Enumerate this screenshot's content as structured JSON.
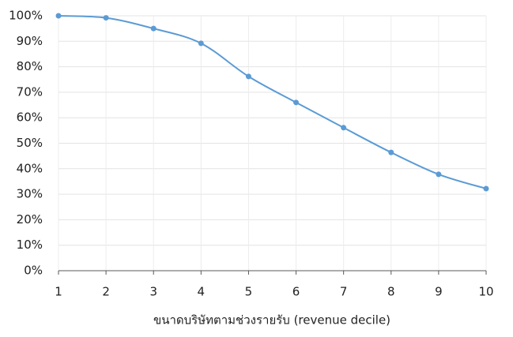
{
  "chart_data": {
    "type": "line",
    "x_label": "ขนาดบริษัทตามช่วงรายรับ (revenue decile)",
    "x": [
      1,
      2,
      3,
      4,
      5,
      6,
      7,
      8,
      9,
      10
    ],
    "series": [
      {
        "color": "#5b9bd5",
        "values": [
          100,
          99.2,
          95,
          89.2,
          76.2,
          66,
          56.1,
          46.4,
          37.8,
          32.2
        ]
      }
    ],
    "xlim": [
      1,
      10
    ],
    "xticks": [
      1,
      2,
      3,
      4,
      5,
      6,
      7,
      8,
      9,
      10
    ],
    "ylim": [
      0,
      100
    ],
    "yticks": [
      {
        "value": 0,
        "label": "0%"
      },
      {
        "value": 10,
        "label": "10%"
      },
      {
        "value": 20,
        "label": "20%"
      },
      {
        "value": 30,
        "label": "30%"
      },
      {
        "value": 40,
        "label": "40%"
      },
      {
        "value": 50,
        "label": "50%"
      },
      {
        "value": 60,
        "label": "60%"
      },
      {
        "value": 70,
        "label": "70%"
      },
      {
        "value": 80,
        "label": "80%"
      },
      {
        "value": 90,
        "label": "90%"
      },
      {
        "value": 100,
        "label": "100%"
      }
    ],
    "grid": true
  }
}
